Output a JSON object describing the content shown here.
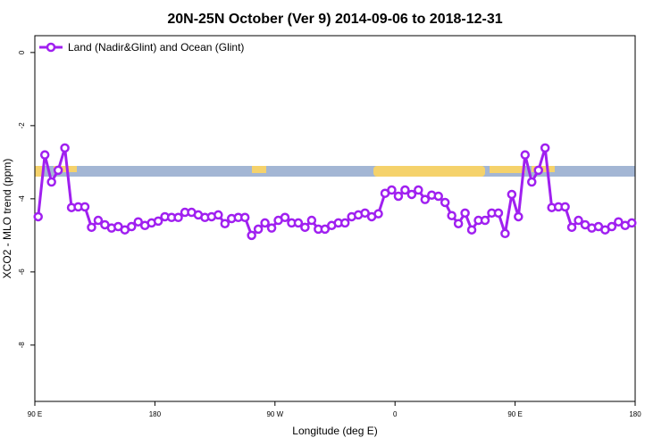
{
  "chart_data": {
    "type": "line",
    "title": "20N-25N October (Ver 9)   2014-09-06 to 2018-12-31",
    "x_label": "Longitude (deg E)",
    "y_label": "XCO2 - MLO trend (ppm)",
    "legend": "topleft",
    "x": [
      92.5,
      97.5,
      102.5,
      107.5,
      112.5,
      117.5,
      122.5,
      127.5,
      132.5,
      137.5,
      142.5,
      147.5,
      152.5,
      157.5,
      162.5,
      167.5,
      172.5,
      177.5,
      182.5,
      187.5,
      192.5,
      197.5,
      202.5,
      207.5,
      212.5,
      217.5,
      222.5,
      227.5,
      232.5,
      237.5,
      242.5,
      247.5,
      252.5,
      257.5,
      262.5,
      267.5,
      272.5,
      277.5,
      282.5,
      287.5,
      292.5,
      297.5,
      302.5,
      307.5,
      312.5,
      317.5,
      322.5,
      327.5,
      332.5,
      337.5,
      342.5,
      347.5,
      352.5,
      357.5,
      362.5,
      367.5,
      372.5,
      377.5,
      382.5,
      387.5,
      392.5,
      397.5,
      402.5,
      407.5,
      412.5,
      417.5,
      422.5,
      427.5,
      432.5,
      437.5,
      442.5,
      447.5,
      452.5,
      457.5,
      462.5,
      467.5,
      472.5,
      477.5,
      482.5,
      487.5,
      492.5,
      497.5,
      502.5,
      507.5,
      512.5,
      517.5,
      522.5,
      527.5,
      532.5,
      537.5
    ],
    "series": [
      {
        "name": "Land (Nadir&Glint) and Ocean (Glint)",
        "color": "#a020f0",
        "values": [
          -4.49,
          -2.8,
          -3.54,
          -3.22,
          -2.61,
          -4.24,
          -4.22,
          -4.22,
          -4.78,
          -4.59,
          -4.71,
          -4.8,
          -4.76,
          -4.85,
          -4.76,
          -4.63,
          -4.73,
          -4.66,
          -4.61,
          -4.49,
          -4.51,
          -4.51,
          -4.37,
          -4.37,
          -4.44,
          -4.51,
          -4.49,
          -4.44,
          -4.68,
          -4.54,
          -4.51,
          -4.51,
          -5.0,
          -4.83,
          -4.66,
          -4.8,
          -4.59,
          -4.51,
          -4.66,
          -4.66,
          -4.78,
          -4.59,
          -4.83,
          -4.83,
          -4.73,
          -4.66,
          -4.66,
          -4.49,
          -4.44,
          -4.39,
          -4.49,
          -4.41,
          -3.85,
          -3.76,
          -3.93,
          -3.76,
          -3.88,
          -3.76,
          -4.02,
          -3.9,
          -3.93,
          -4.1,
          -4.46,
          -4.68,
          -4.39,
          -4.85,
          -4.59,
          -4.59,
          -4.39,
          -4.39,
          -4.95,
          -3.88,
          -4.49,
          -2.8,
          -3.54,
          -3.22,
          -2.61,
          -4.24,
          -4.22,
          -4.22,
          -4.78,
          -4.59,
          -4.71,
          -4.8,
          -4.76,
          -4.85,
          -4.76,
          -4.63,
          -4.73,
          -4.66
        ]
      }
    ],
    "xlim": [
      90,
      540
    ],
    "xticks": [
      {
        "value": 90,
        "label": "90 E"
      },
      180,
      {
        "value": 270,
        "label": "90 W"
      },
      {
        "value": 360,
        "label": "0"
      },
      {
        "value": 450,
        "label": "90 E"
      },
      {
        "value": 540,
        "label": "180"
      }
    ],
    "ylim": [
      -9.54,
      0.46
    ],
    "yticks": [
      0,
      -2,
      -4,
      -6,
      -8
    ]
  }
}
